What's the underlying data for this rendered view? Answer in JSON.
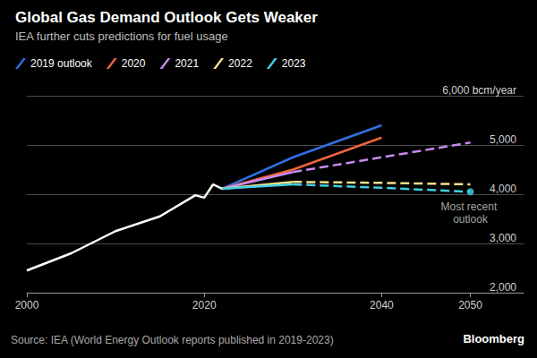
{
  "chart_data": {
    "type": "line",
    "title": "Global Gas Demand Outlook Gets Weaker",
    "subtitle": "IEA further cuts predictions for fuel usage",
    "source": "Source: IEA (World Energy Outlook reports published in 2019-2023)",
    "credit": "Bloomberg",
    "annotation": "Most recent outlook",
    "x": [
      2000,
      2005,
      2010,
      2015,
      2019,
      2020,
      2021,
      2022,
      2030,
      2040,
      2050
    ],
    "series": [
      {
        "color": "#ffffff",
        "line_style": "solid",
        "values": [
          2450,
          2800,
          3250,
          3550,
          3980,
          3930,
          4200,
          4110,
          null,
          null,
          null
        ]
      },
      {
        "name": "2019 outlook",
        "color": "#2f6fe4",
        "line_style": "solid",
        "values": [
          null,
          null,
          null,
          null,
          null,
          null,
          null,
          4110,
          4750,
          5400,
          null
        ]
      },
      {
        "name": "2020",
        "color": "#f0643f",
        "line_style": "solid",
        "values": [
          null,
          null,
          null,
          null,
          null,
          null,
          null,
          4110,
          4500,
          5150,
          null
        ]
      },
      {
        "name": "2021",
        "color": "#c88af2",
        "line_style": "solid",
        "values": [
          null,
          null,
          null,
          null,
          null,
          null,
          null,
          4110,
          4450,
          null,
          null
        ]
      },
      {
        "name": "2021",
        "color": "#c88af2",
        "line_style": "dashed",
        "values": [
          null,
          null,
          null,
          null,
          null,
          null,
          null,
          null,
          4450,
          4750,
          5050
        ]
      },
      {
        "name": "2022",
        "color": "#f5e08a",
        "line_style": "solid",
        "values": [
          null,
          null,
          null,
          null,
          null,
          null,
          null,
          4110,
          4250,
          null,
          null
        ]
      },
      {
        "name": "2022",
        "color": "#f5e08a",
        "line_style": "dashed",
        "values": [
          null,
          null,
          null,
          null,
          null,
          null,
          null,
          null,
          4250,
          4230,
          4200
        ]
      },
      {
        "name": "2023",
        "color": "#3fd0e6",
        "line_style": "solid",
        "values": [
          null,
          null,
          null,
          null,
          null,
          null,
          null,
          4110,
          4200,
          null,
          null
        ]
      },
      {
        "name": "2023",
        "color": "#3fd0e6",
        "line_style": "dashed",
        "values": [
          null,
          null,
          null,
          null,
          null,
          null,
          null,
          null,
          4200,
          4130,
          4050
        ]
      },
      {
        "name": "2023",
        "color": "#3fd0e6",
        "type": "scatter",
        "marker": "circle",
        "values": [
          null,
          null,
          null,
          null,
          null,
          null,
          null,
          null,
          null,
          null,
          4050
        ]
      }
    ],
    "xlim": [
      2000,
      2056
    ],
    "xticks": [
      2000,
      2020,
      2040,
      2050
    ],
    "ylim": [
      2000,
      6000
    ],
    "yticks": [
      {
        "value": 2000,
        "label": "2,000"
      },
      {
        "value": 3000,
        "label": "3,000"
      },
      {
        "value": 4000,
        "label": "4,000"
      },
      {
        "value": 5000,
        "label": "5,000"
      },
      {
        "value": 6000,
        "label": "6,000 bcm/year"
      }
    ],
    "grid": true,
    "legend": "top-left"
  }
}
